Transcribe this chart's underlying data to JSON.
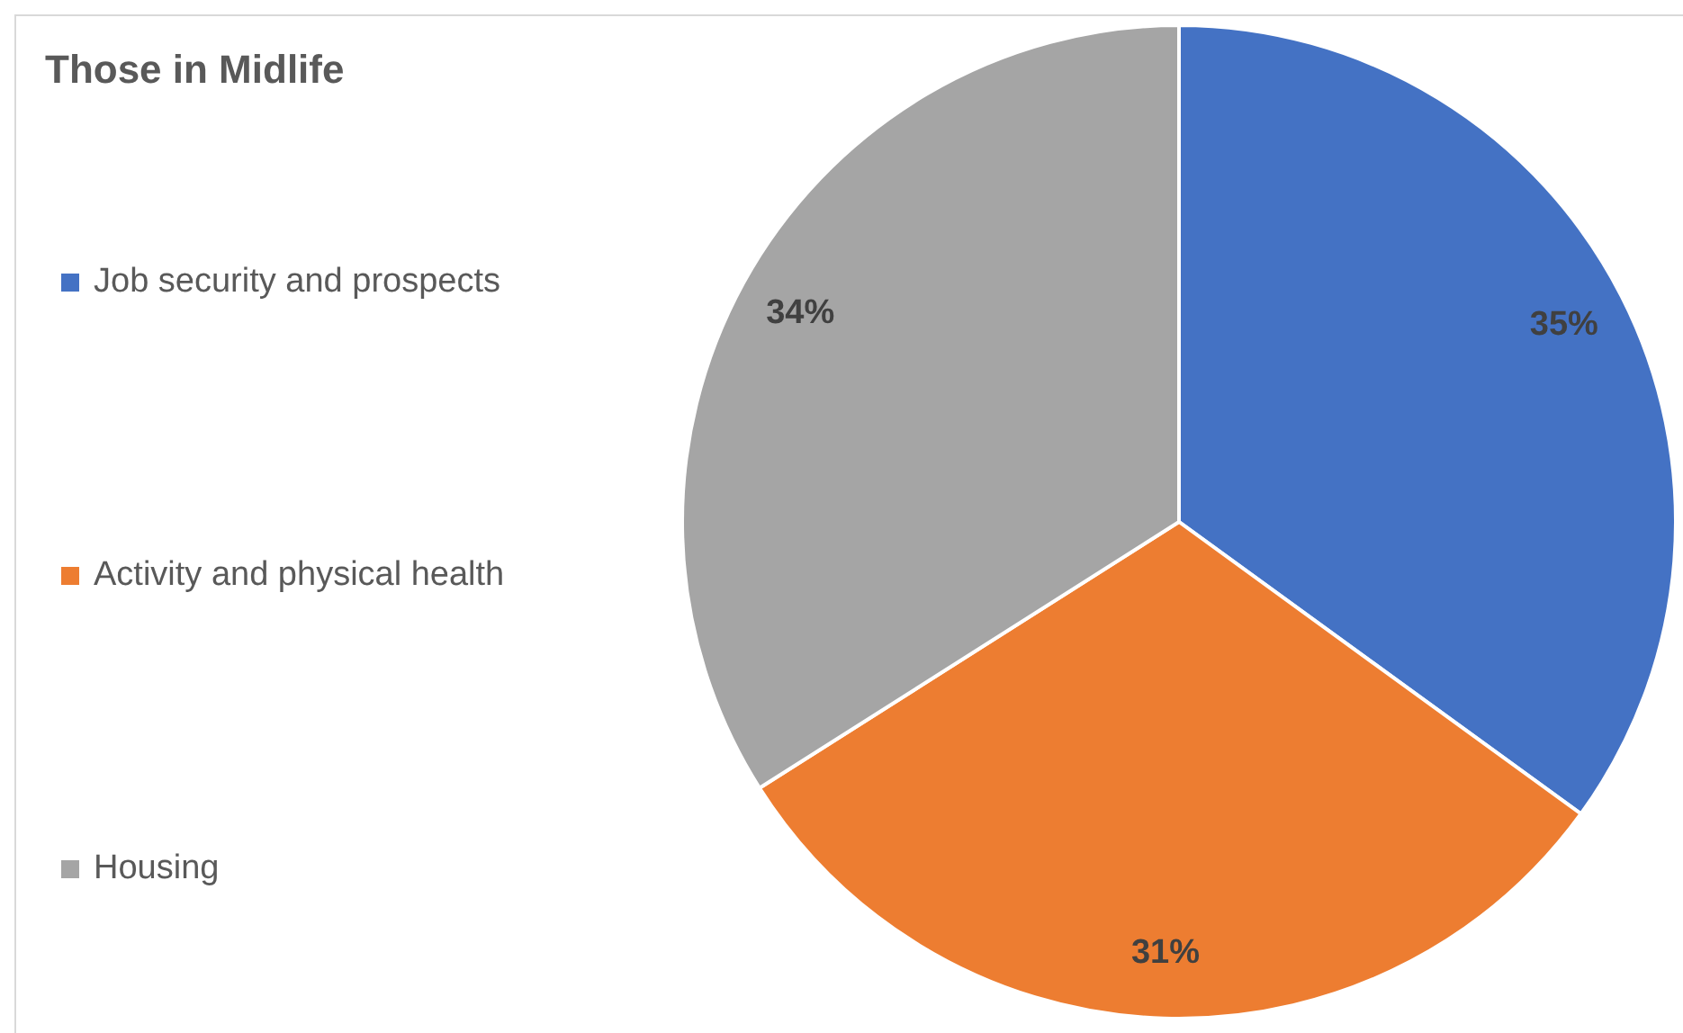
{
  "chart_data": {
    "type": "pie",
    "title": "Those in Midlife",
    "categories": [
      "Job security and prospects",
      "Activity and physical health",
      "Housing"
    ],
    "values": [
      35,
      31,
      34
    ],
    "colors": [
      "#4472c4",
      "#ed7d31",
      "#a5a5a5"
    ],
    "value_labels": [
      "35%",
      "31%",
      "34%"
    ],
    "legend": "left"
  }
}
